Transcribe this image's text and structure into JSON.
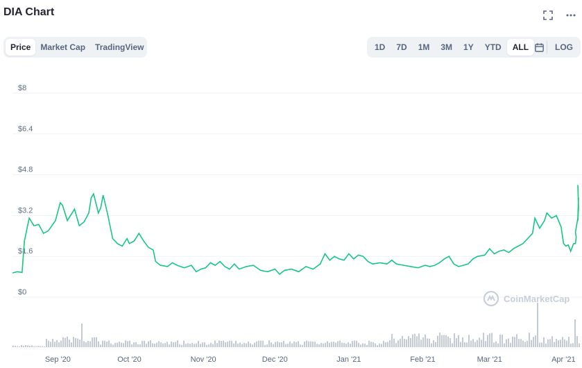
{
  "header": {
    "title": "DIA Chart"
  },
  "toolbar": {
    "fullscreen_icon": "fullscreen-icon",
    "more_icon": "more-icon",
    "tabs": [
      "Price",
      "Market Cap",
      "TradingView"
    ],
    "active_tab": "Price",
    "ranges": [
      "1D",
      "7D",
      "1M",
      "3M",
      "1Y",
      "YTD",
      "ALL"
    ],
    "active_range": "ALL",
    "calendar_icon": "calendar-icon",
    "log_label": "LOG"
  },
  "watermark": "CoinMarketCap",
  "colors": {
    "line": "#16c784",
    "volume": "#c4c9d6",
    "grid": "#eff2f5"
  },
  "chart_data": {
    "type": "line",
    "title": "",
    "xlabel": "",
    "ylabel": "",
    "y_tick_labels": [
      "$0",
      "$1.6",
      "$3.2",
      "$4.8",
      "$6.4",
      "$8"
    ],
    "ylim": [
      0,
      8
    ],
    "x_tick_labels": [
      "Sep '20",
      "Oct '20",
      "Nov '20",
      "Dec '20",
      "Jan '21",
      "Feb '21",
      "Mar '21",
      "Apr '21"
    ],
    "xlim": [
      "2020-08-13",
      "2021-04-07"
    ],
    "grid": true,
    "series": [
      {
        "values": [
          [
            "2020-08-13",
            0.95
          ],
          [
            "2020-08-15",
            1.0
          ],
          [
            "2020-08-17",
            0.97
          ],
          [
            "2020-08-18",
            2.2
          ],
          [
            "2020-08-20",
            3.1
          ],
          [
            "2020-08-22",
            2.8
          ],
          [
            "2020-08-24",
            2.85
          ],
          [
            "2020-08-26",
            2.5
          ],
          [
            "2020-08-28",
            2.6
          ],
          [
            "2020-08-31",
            3.0
          ],
          [
            "2020-09-02",
            3.7
          ],
          [
            "2020-09-03",
            3.6
          ],
          [
            "2020-09-05",
            3.0
          ],
          [
            "2020-09-07",
            3.3
          ],
          [
            "2020-09-08",
            3.45
          ],
          [
            "2020-09-10",
            2.8
          ],
          [
            "2020-09-12",
            2.95
          ],
          [
            "2020-09-14",
            3.3
          ],
          [
            "2020-09-15",
            3.9
          ],
          [
            "2020-09-16",
            4.05
          ],
          [
            "2020-09-18",
            3.3
          ],
          [
            "2020-09-19",
            3.5
          ],
          [
            "2020-09-20",
            4.0
          ],
          [
            "2020-09-22",
            3.2
          ],
          [
            "2020-09-24",
            2.3
          ],
          [
            "2020-09-26",
            2.1
          ],
          [
            "2020-09-28",
            2.0
          ],
          [
            "2020-09-30",
            2.3
          ],
          [
            "2020-10-01",
            2.1
          ],
          [
            "2020-10-03",
            2.2
          ],
          [
            "2020-10-05",
            2.5
          ],
          [
            "2020-10-07",
            2.2
          ],
          [
            "2020-10-09",
            1.95
          ],
          [
            "2020-10-11",
            1.85
          ],
          [
            "2020-10-12",
            1.4
          ],
          [
            "2020-10-14",
            1.25
          ],
          [
            "2020-10-17",
            1.2
          ],
          [
            "2020-10-19",
            1.35
          ],
          [
            "2020-10-21",
            1.25
          ],
          [
            "2020-10-24",
            1.15
          ],
          [
            "2020-10-27",
            1.25
          ],
          [
            "2020-10-29",
            1.0
          ],
          [
            "2020-10-31",
            1.1
          ],
          [
            "2020-11-02",
            1.15
          ],
          [
            "2020-11-04",
            1.35
          ],
          [
            "2020-11-06",
            1.25
          ],
          [
            "2020-11-08",
            1.4
          ],
          [
            "2020-11-10",
            1.2
          ],
          [
            "2020-11-12",
            1.1
          ],
          [
            "2020-11-14",
            1.3
          ],
          [
            "2020-11-16",
            1.1
          ],
          [
            "2020-11-19",
            1.2
          ],
          [
            "2020-11-22",
            1.25
          ],
          [
            "2020-11-25",
            1.05
          ],
          [
            "2020-11-28",
            1.0
          ],
          [
            "2020-12-01",
            1.1
          ],
          [
            "2020-12-03",
            0.9
          ],
          [
            "2020-12-05",
            1.05
          ],
          [
            "2020-12-08",
            1.1
          ],
          [
            "2020-12-11",
            1.0
          ],
          [
            "2020-12-14",
            1.2
          ],
          [
            "2020-12-17",
            1.1
          ],
          [
            "2020-12-20",
            1.3
          ],
          [
            "2020-12-22",
            1.7
          ],
          [
            "2020-12-24",
            1.45
          ],
          [
            "2020-12-26",
            1.6
          ],
          [
            "2020-12-28",
            1.5
          ],
          [
            "2020-12-30",
            1.45
          ],
          [
            "2021-01-01",
            1.7
          ],
          [
            "2021-01-03",
            1.5
          ],
          [
            "2021-01-05",
            1.65
          ],
          [
            "2021-01-07",
            1.6
          ],
          [
            "2021-01-09",
            1.4
          ],
          [
            "2021-01-11",
            1.3
          ],
          [
            "2021-01-14",
            1.35
          ],
          [
            "2021-01-17",
            1.3
          ],
          [
            "2021-01-19",
            1.45
          ],
          [
            "2021-01-21",
            1.3
          ],
          [
            "2021-01-24",
            1.25
          ],
          [
            "2021-01-27",
            1.2
          ],
          [
            "2021-01-30",
            1.15
          ],
          [
            "2021-02-02",
            1.25
          ],
          [
            "2021-02-04",
            1.2
          ],
          [
            "2021-02-06",
            1.25
          ],
          [
            "2021-02-08",
            1.35
          ],
          [
            "2021-02-10",
            1.5
          ],
          [
            "2021-02-12",
            1.6
          ],
          [
            "2021-02-14",
            1.3
          ],
          [
            "2021-02-16",
            1.2
          ],
          [
            "2021-02-18",
            1.25
          ],
          [
            "2021-02-20",
            1.3
          ],
          [
            "2021-02-22",
            1.5
          ],
          [
            "2021-02-24",
            1.6
          ],
          [
            "2021-02-27",
            1.65
          ],
          [
            "2021-03-01",
            1.9
          ],
          [
            "2021-03-03",
            1.7
          ],
          [
            "2021-03-05",
            1.8
          ],
          [
            "2021-03-07",
            1.85
          ],
          [
            "2021-03-09",
            1.75
          ],
          [
            "2021-03-11",
            1.9
          ],
          [
            "2021-03-13",
            2.0
          ],
          [
            "2021-03-15",
            2.1
          ],
          [
            "2021-03-17",
            2.3
          ],
          [
            "2021-03-19",
            2.5
          ],
          [
            "2021-03-20",
            3.1
          ],
          [
            "2021-03-22",
            2.7
          ],
          [
            "2021-03-24",
            3.0
          ],
          [
            "2021-03-25",
            3.3
          ],
          [
            "2021-03-27",
            3.1
          ],
          [
            "2021-03-29",
            3.2
          ],
          [
            "2021-03-31",
            2.75
          ],
          [
            "2021-04-01",
            2.1
          ],
          [
            "2021-04-02",
            2.0
          ],
          [
            "2021-04-03",
            2.05
          ],
          [
            "2021-04-04",
            1.8
          ],
          [
            "2021-04-05",
            2.05
          ],
          [
            "2021-04-05",
            2.1
          ],
          [
            "2021-04-06",
            2.1
          ],
          [
            "2021-04-06",
            2.35
          ],
          [
            "2021-04-06",
            2.55
          ],
          [
            "2021-04-07",
            3.1
          ],
          [
            "2021-04-07",
            3.9
          ],
          [
            "2021-04-07",
            3.0
          ],
          [
            "2021-04-07",
            3.5
          ],
          [
            "2021-04-07",
            4.4
          ]
        ]
      }
    ],
    "volume_axis_note": ""
  }
}
